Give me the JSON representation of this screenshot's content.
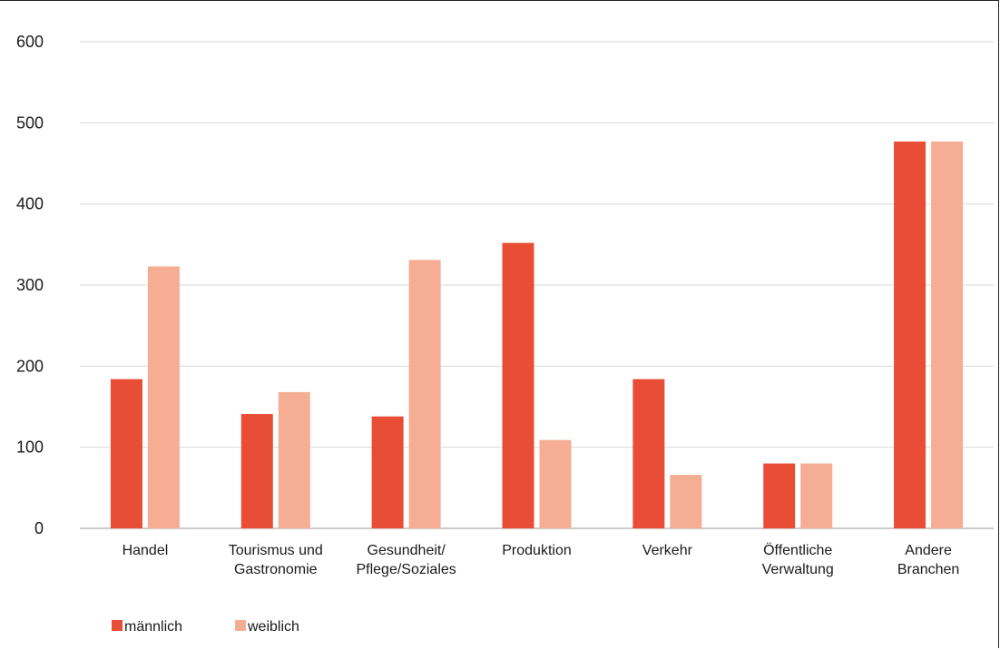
{
  "chart_data": {
    "type": "bar",
    "title": "",
    "xlabel": "",
    "ylabel": "",
    "ylim": [
      0,
      600
    ],
    "yticks": [
      "0",
      "100",
      "200",
      "300",
      "400",
      "500",
      "600"
    ],
    "grid": true,
    "legend_position": "bottom-left",
    "categories": [
      [
        "Handel"
      ],
      [
        "Tourismus und",
        "Gastronomie"
      ],
      [
        "Gesundheit/",
        "Pflege/Soziales"
      ],
      [
        "Produktion"
      ],
      [
        "Verkehr"
      ],
      [
        "Öffentliche",
        "Verwaltung"
      ],
      [
        "Andere",
        "Branchen"
      ]
    ],
    "series": [
      {
        "name": "männlich",
        "color": "#e84e35",
        "values": [
          184,
          141,
          138,
          352,
          184,
          80,
          477
        ]
      },
      {
        "name": "weiblich",
        "color": "#f5ae94",
        "values": [
          323,
          168,
          331,
          109,
          66,
          80,
          477
        ]
      }
    ]
  }
}
